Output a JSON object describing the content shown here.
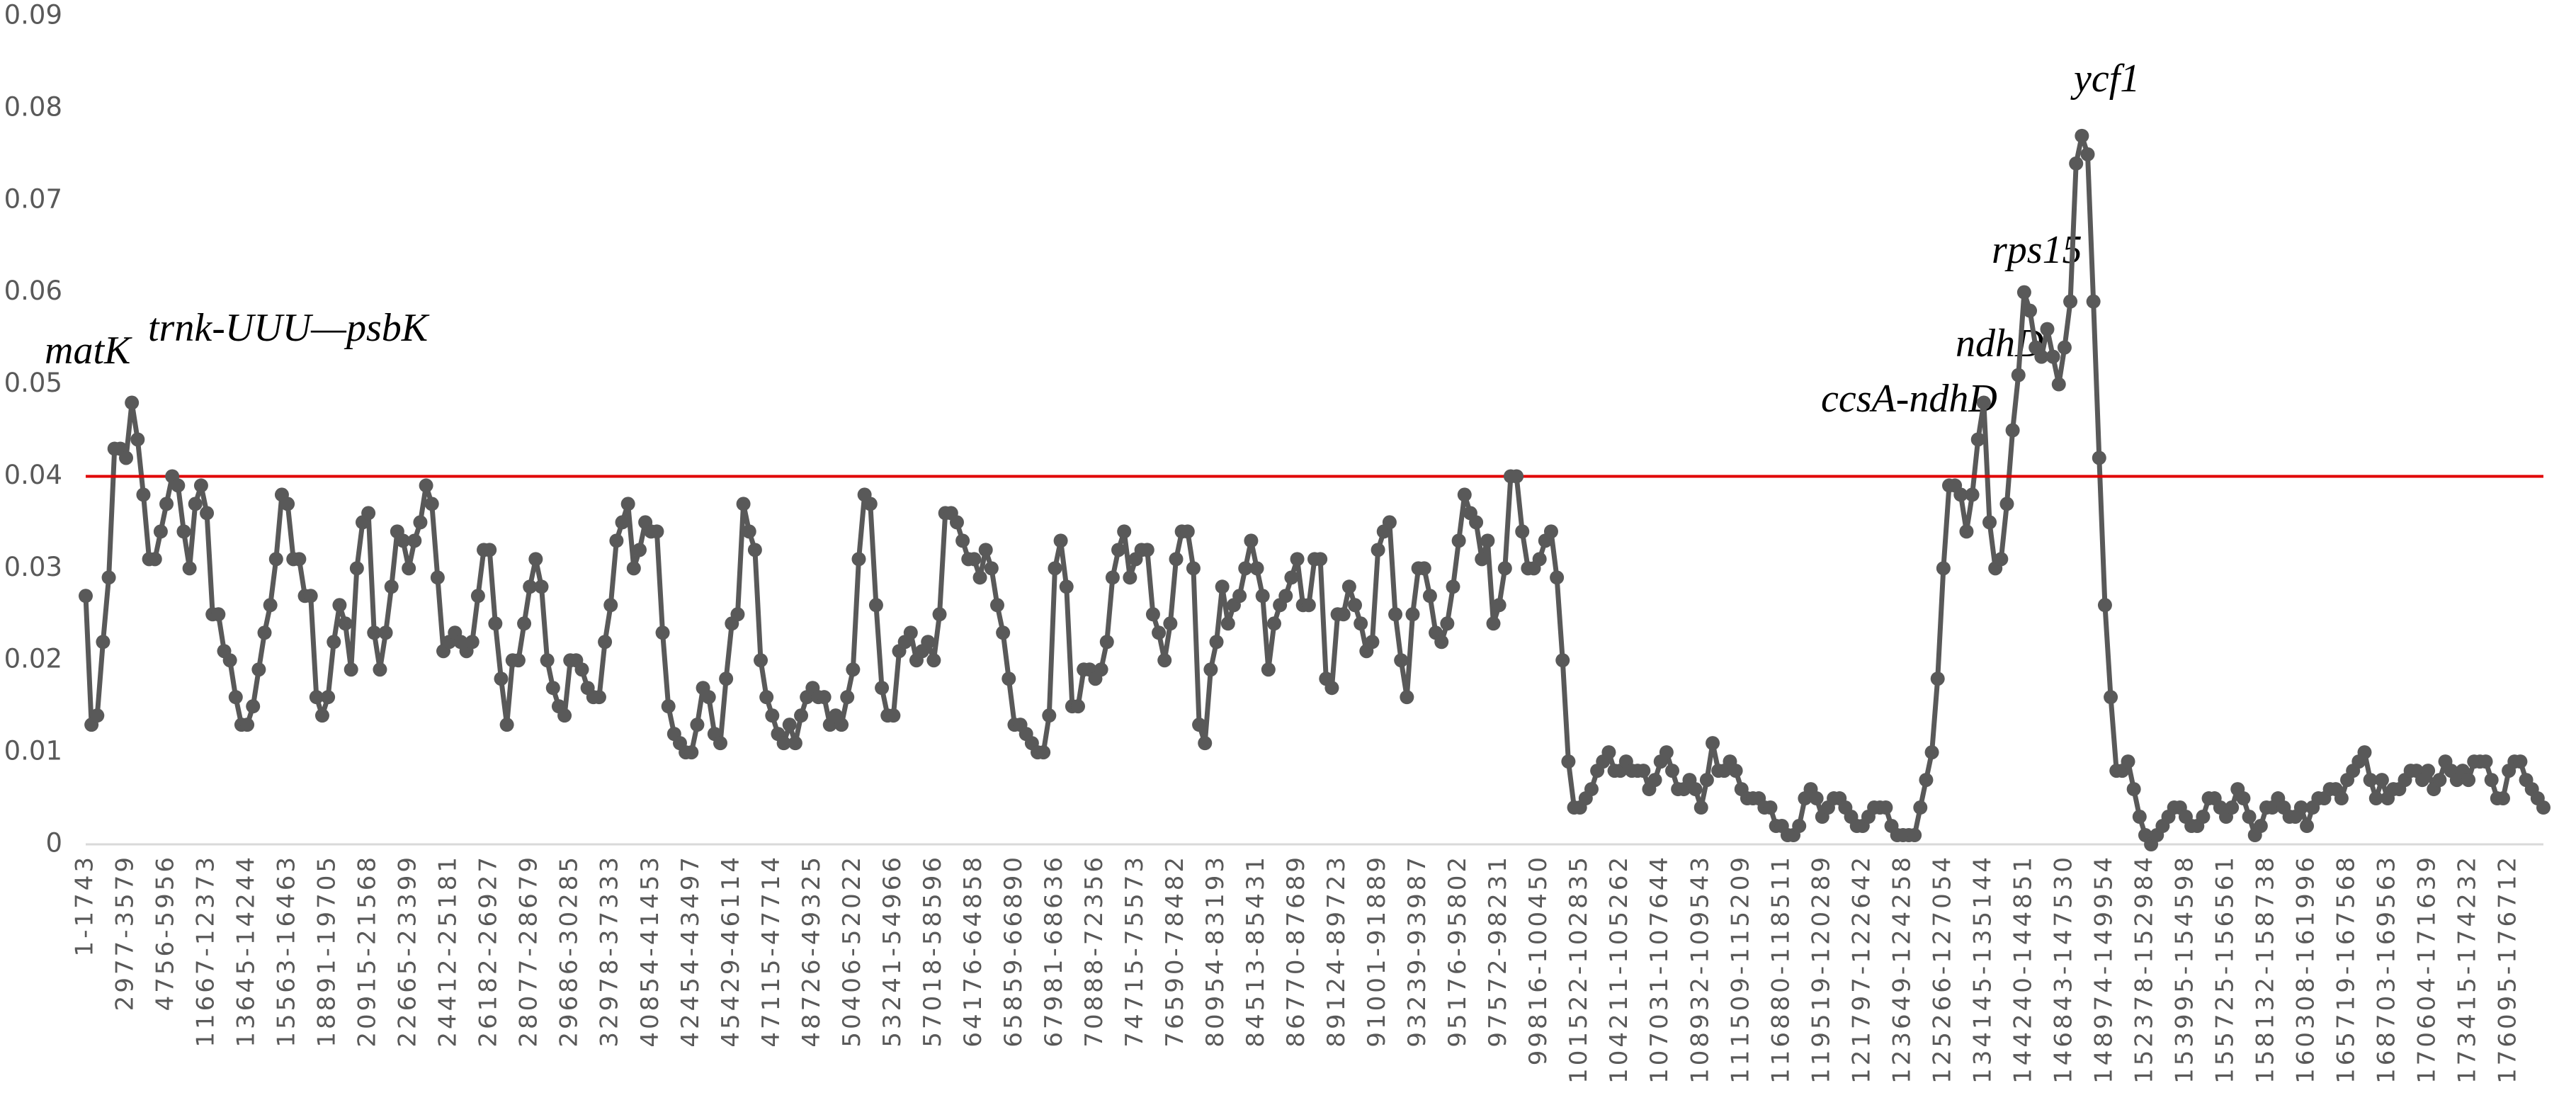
{
  "chart_data": {
    "type": "line",
    "color": "#595959",
    "threshold": 0.04,
    "threshold_color": "#e00000",
    "ylim": [
      0,
      0.09
    ],
    "yticks": [
      0,
      0.01,
      0.02,
      0.03,
      0.04,
      0.05,
      0.06,
      0.07,
      0.08,
      0.09
    ],
    "grid": false,
    "annotations": [
      "matK",
      "trnk-UUU—psbK",
      "ccsA-ndhD",
      "ndhD",
      "rps15",
      "ycf1"
    ],
    "categories": [
      "1-1743",
      null,
      null,
      null,
      null,
      null,
      null,
      "2977-3579",
      null,
      null,
      null,
      null,
      null,
      null,
      "4756-5956",
      null,
      null,
      null,
      null,
      null,
      null,
      "11667-12373",
      null,
      null,
      null,
      null,
      null,
      null,
      "13645-14244",
      null,
      null,
      null,
      null,
      null,
      null,
      "15563-16463",
      null,
      null,
      null,
      null,
      null,
      null,
      "18891-19705",
      null,
      null,
      null,
      null,
      null,
      null,
      "20915-21568",
      null,
      null,
      null,
      null,
      null,
      null,
      "22665-23399",
      null,
      null,
      null,
      null,
      null,
      null,
      "24412-25181",
      null,
      null,
      null,
      null,
      null,
      null,
      "26182-26927",
      null,
      null,
      null,
      null,
      null,
      null,
      "28077-28679",
      null,
      null,
      null,
      null,
      null,
      null,
      "29686-30285",
      null,
      null,
      null,
      null,
      null,
      null,
      "32978-37333",
      null,
      null,
      null,
      null,
      null,
      null,
      "40854-41453",
      null,
      null,
      null,
      null,
      null,
      null,
      "42454-43497",
      null,
      null,
      null,
      null,
      null,
      null,
      "45429-46114",
      null,
      null,
      null,
      null,
      null,
      null,
      "47115-47714",
      null,
      null,
      null,
      null,
      null,
      null,
      "48726-49325",
      null,
      null,
      null,
      null,
      null,
      null,
      "50406-52022",
      null,
      null,
      null,
      null,
      null,
      null,
      "53241-54966",
      null,
      null,
      null,
      null,
      null,
      null,
      "57018-58596",
      null,
      null,
      null,
      null,
      null,
      null,
      "64176-64858",
      null,
      null,
      null,
      null,
      null,
      null,
      "65859-66890",
      null,
      null,
      null,
      null,
      null,
      null,
      "67981-68636",
      null,
      null,
      null,
      null,
      null,
      null,
      "70888-72356",
      null,
      null,
      null,
      null,
      null,
      null,
      "74715-75573",
      null,
      null,
      null,
      null,
      null,
      null,
      "76590-78482",
      null,
      null,
      null,
      null,
      null,
      null,
      "80954-83193",
      null,
      null,
      null,
      null,
      null,
      null,
      "84513-85431",
      null,
      null,
      null,
      null,
      null,
      null,
      "86770-87689",
      null,
      null,
      null,
      null,
      null,
      null,
      "89124-89723",
      null,
      null,
      null,
      null,
      null,
      null,
      "91001-91889",
      null,
      null,
      null,
      null,
      null,
      null,
      "93239-93987",
      null,
      null,
      null,
      null,
      null,
      null,
      "95176-95802",
      null,
      null,
      null,
      null,
      null,
      null,
      "97572-98231",
      null,
      null,
      null,
      null,
      null,
      null,
      "99816-100450",
      null,
      null,
      null,
      null,
      null,
      null,
      "101522-102835",
      null,
      null,
      null,
      null,
      null,
      null,
      "104211-105262",
      null,
      null,
      null,
      null,
      null,
      null,
      "107031-107644",
      null,
      null,
      null,
      null,
      null,
      null,
      "108932-109543",
      null,
      null,
      null,
      null,
      null,
      null,
      "111509-115209",
      null,
      null,
      null,
      null,
      null,
      null,
      "116880-118511",
      null,
      null,
      null,
      null,
      null,
      null,
      "119519-120289",
      null,
      null,
      null,
      null,
      null,
      null,
      "121797-122642",
      null,
      null,
      null,
      null,
      null,
      null,
      "123649-124258",
      null,
      null,
      null,
      null,
      null,
      null,
      "125266-127054",
      null,
      null,
      null,
      null,
      null,
      null,
      "134145-135144",
      null,
      null,
      null,
      null,
      null,
      null,
      "144240-144851",
      null,
      null,
      null,
      null,
      null,
      null,
      "146843-147530",
      null,
      null,
      null,
      null,
      null,
      null,
      "148974-149954",
      null,
      null,
      null,
      null,
      null,
      null,
      "152378-152984",
      null,
      null,
      null,
      null,
      null,
      null,
      "153995-154598",
      null,
      null,
      null,
      null,
      null,
      null,
      "155725-156561",
      null,
      null,
      null,
      null,
      null,
      null,
      "158132-158738",
      null,
      null,
      null,
      null,
      null,
      null,
      "160308-161996",
      null,
      null,
      null,
      null,
      null,
      null,
      "165719-167568",
      null,
      null,
      null,
      null,
      null,
      null,
      "168703-169563",
      null,
      null,
      null,
      null,
      null,
      null,
      "170604-171639",
      null,
      null,
      null,
      null,
      null,
      null,
      "173415-174232",
      null,
      null,
      null,
      null,
      null,
      null,
      "176095-176712",
      null,
      null,
      null,
      null,
      null,
      null
    ],
    "values": [
      0.027,
      0.013,
      0.014,
      0.022,
      0.029,
      0.043,
      0.043,
      0.042,
      0.048,
      0.044,
      0.038,
      0.031,
      0.031,
      0.034,
      0.037,
      0.04,
      0.039,
      0.034,
      0.03,
      0.037,
      0.039,
      0.036,
      0.025,
      0.025,
      0.021,
      0.02,
      0.016,
      0.013,
      0.013,
      0.015,
      0.019,
      0.023,
      0.026,
      0.031,
      0.038,
      0.037,
      0.031,
      0.031,
      0.027,
      0.027,
      0.016,
      0.014,
      0.016,
      0.022,
      0.026,
      0.024,
      0.019,
      0.03,
      0.035,
      0.036,
      0.023,
      0.019,
      0.023,
      0.028,
      0.034,
      0.033,
      0.03,
      0.033,
      0.035,
      0.039,
      0.037,
      0.029,
      0.021,
      0.022,
      0.023,
      0.022,
      0.021,
      0.022,
      0.027,
      0.032,
      0.032,
      0.024,
      0.018,
      0.013,
      0.02,
      0.02,
      0.024,
      0.028,
      0.031,
      0.028,
      0.02,
      0.017,
      0.015,
      0.014,
      0.02,
      0.02,
      0.019,
      0.017,
      0.016,
      0.016,
      0.022,
      0.026,
      0.033,
      0.035,
      0.037,
      0.03,
      0.032,
      0.035,
      0.034,
      0.034,
      0.023,
      0.015,
      0.012,
      0.011,
      0.01,
      0.01,
      0.013,
      0.017,
      0.016,
      0.012,
      0.011,
      0.018,
      0.024,
      0.025,
      0.037,
      0.034,
      0.032,
      0.02,
      0.016,
      0.014,
      0.012,
      0.011,
      0.013,
      0.011,
      0.014,
      0.016,
      0.017,
      0.016,
      0.016,
      0.013,
      0.014,
      0.013,
      0.016,
      0.019,
      0.031,
      0.038,
      0.037,
      0.026,
      0.017,
      0.014,
      0.014,
      0.021,
      0.022,
      0.023,
      0.02,
      0.021,
      0.022,
      0.02,
      0.025,
      0.036,
      0.036,
      0.035,
      0.033,
      0.031,
      0.031,
      0.029,
      0.032,
      0.03,
      0.026,
      0.023,
      0.018,
      0.013,
      0.013,
      0.012,
      0.011,
      0.01,
      0.01,
      0.014,
      0.03,
      0.033,
      0.028,
      0.015,
      0.015,
      0.019,
      0.019,
      0.018,
      0.019,
      0.022,
      0.029,
      0.032,
      0.034,
      0.029,
      0.031,
      0.032,
      0.032,
      0.025,
      0.023,
      0.02,
      0.024,
      0.031,
      0.034,
      0.034,
      0.03,
      0.013,
      0.011,
      0.019,
      0.022,
      0.028,
      0.024,
      0.026,
      0.027,
      0.03,
      0.033,
      0.03,
      0.027,
      0.019,
      0.024,
      0.026,
      0.027,
      0.029,
      0.031,
      0.026,
      0.026,
      0.031,
      0.031,
      0.018,
      0.017,
      0.025,
      0.025,
      0.028,
      0.026,
      0.024,
      0.021,
      0.022,
      0.032,
      0.034,
      0.035,
      0.025,
      0.02,
      0.016,
      0.025,
      0.03,
      0.03,
      0.027,
      0.023,
      0.022,
      0.024,
      0.028,
      0.033,
      0.038,
      0.036,
      0.035,
      0.031,
      0.033,
      0.024,
      0.026,
      0.03,
      0.04,
      0.04,
      0.034,
      0.03,
      0.03,
      0.031,
      0.033,
      0.034,
      0.029,
      0.02,
      0.009,
      0.004,
      0.004,
      0.005,
      0.006,
      0.008,
      0.009,
      0.01,
      0.008,
      0.008,
      0.009,
      0.008,
      0.008,
      0.008,
      0.006,
      0.007,
      0.009,
      0.01,
      0.008,
      0.006,
      0.006,
      0.007,
      0.006,
      0.004,
      0.007,
      0.011,
      0.008,
      0.008,
      0.009,
      0.008,
      0.006,
      0.005,
      0.005,
      0.005,
      0.004,
      0.004,
      0.002,
      0.002,
      0.001,
      0.001,
      0.002,
      0.005,
      0.006,
      0.005,
      0.003,
      0.004,
      0.005,
      0.005,
      0.004,
      0.003,
      0.002,
      0.002,
      0.003,
      0.004,
      0.004,
      0.004,
      0.002,
      0.001,
      0.001,
      0.001,
      0.001,
      0.004,
      0.007,
      0.01,
      0.018,
      0.03,
      0.039,
      0.039,
      0.038,
      0.034,
      0.038,
      0.044,
      0.048,
      0.035,
      0.03,
      0.031,
      0.037,
      0.045,
      0.051,
      0.06,
      0.058,
      0.054,
      0.053,
      0.056,
      0.053,
      0.05,
      0.054,
      0.059,
      0.074,
      0.077,
      0.075,
      0.059,
      0.042,
      0.026,
      0.016,
      0.008,
      0.008,
      0.009,
      0.006,
      0.003,
      0.001,
      0.0,
      0.001,
      0.002,
      0.003,
      0.004,
      0.004,
      0.003,
      0.002,
      0.002,
      0.003,
      0.005,
      0.005,
      0.004,
      0.003,
      0.004,
      0.006,
      0.005,
      0.003,
      0.001,
      0.002,
      0.004,
      0.004,
      0.005,
      0.004,
      0.003,
      0.003,
      0.004,
      0.002,
      0.004,
      0.005,
      0.005,
      0.006,
      0.006,
      0.005,
      0.007,
      0.008,
      0.009,
      0.01,
      0.007,
      0.005,
      0.007,
      0.005,
      0.006,
      0.006,
      0.007,
      0.008,
      0.008,
      0.007,
      0.008,
      0.006,
      0.007,
      0.009,
      0.008,
      0.007,
      0.008,
      0.007,
      0.009,
      0.009,
      0.009,
      0.007,
      0.005,
      0.005,
      0.008,
      0.009,
      0.009,
      0.007,
      0.006,
      0.005,
      0.004
    ]
  }
}
